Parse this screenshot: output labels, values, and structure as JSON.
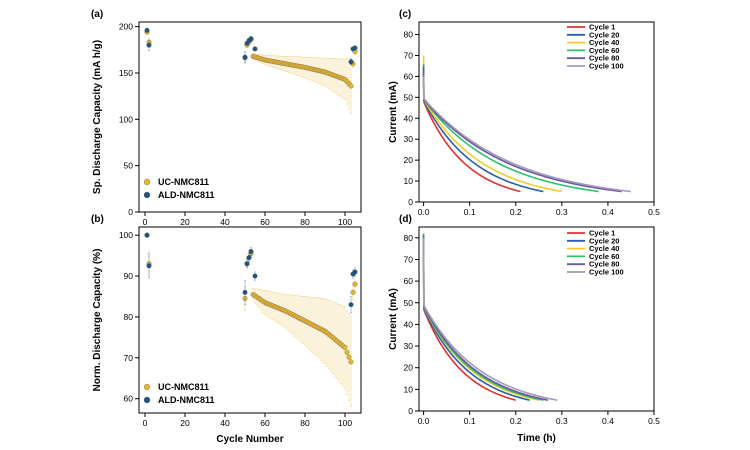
{
  "chart_data": [
    {
      "id": "a",
      "panel_label": "(a)",
      "type": "scatter",
      "ylabel": "Sp. Discharge Capacity (mA h/g)",
      "xlabel": "",
      "xlim": [
        -3,
        108
      ],
      "ylim": [
        0,
        205
      ],
      "xticks": [
        0,
        20,
        40,
        60,
        80,
        100
      ],
      "yticks": [
        0,
        50,
        100,
        150,
        200
      ],
      "legend_position": "bottom-left",
      "colors": {
        "UC-NMC811": "#E8B530",
        "ALD-NMC811": "#1F5585"
      },
      "series": [
        {
          "name": "UC-NMC811",
          "color": "#E8B530",
          "segments": [
            {
              "x": [
                1
              ],
              "y": [
                194
              ],
              "err": [
                2
              ]
            },
            {
              "x": [
                2,
                50
              ],
              "y": [
                183,
                166
              ],
              "err": [
                5,
                6
              ]
            },
            {
              "x": [
                51,
                52,
                53
              ],
              "y": [
                180,
                183,
                186
              ],
              "err": [
                2,
                2,
                2
              ]
            },
            {
              "x": [
                54,
                60,
                70,
                80,
                90,
                100,
                103
              ],
              "y": [
                168,
                164,
                160,
                156,
                151,
                143,
                136
              ],
              "err": [
                3,
                5,
                8,
                11,
                15,
                22,
                30
              ]
            },
            {
              "x": [
                104,
                105
              ],
              "y": [
                160,
                173
              ],
              "err": [
                4,
                4
              ]
            }
          ]
        },
        {
          "name": "ALD-NMC811",
          "color": "#1F5585",
          "segments": [
            {
              "x": [
                1
              ],
              "y": [
                196
              ],
              "err": [
                2
              ]
            },
            {
              "x": [
                2,
                50
              ],
              "y": [
                180,
                167
              ],
              "err": [
                6,
                6
              ]
            },
            {
              "x": [
                51,
                52,
                53
              ],
              "y": [
                182,
                185,
                187
              ],
              "err": [
                2,
                2,
                2
              ]
            },
            {
              "x": [
                55,
                103
              ],
              "y": [
                176,
                162
              ],
              "err": [
                2,
                3
              ]
            },
            {
              "x": [
                104,
                105
              ],
              "y": [
                176,
                177
              ],
              "err": [
                2,
                2
              ]
            }
          ]
        }
      ]
    },
    {
      "id": "b",
      "panel_label": "(b)",
      "type": "scatter",
      "ylabel": "Norm. Discharge Capacity (%)",
      "xlabel": "Cycle Number",
      "xlim": [
        -3,
        108
      ],
      "ylim": [
        56.5,
        102
      ],
      "xticks": [
        0,
        20,
        40,
        60,
        80,
        100
      ],
      "yticks": [
        60,
        70,
        80,
        90,
        100
      ],
      "legend_position": "bottom-left",
      "colors": {
        "UC-NMC811": "#E8B530",
        "ALD-NMC811": "#1F5585"
      },
      "series": [
        {
          "name": "UC-NMC811",
          "color": "#E8B530",
          "segments": [
            {
              "x": [
                1
              ],
              "y": [
                100
              ],
              "err": [
                0.5
              ]
            },
            {
              "x": [
                2,
                50
              ],
              "y": [
                93,
                84.5
              ],
              "err": [
                3,
                3
              ]
            },
            {
              "x": [
                51,
                52,
                53
              ],
              "y": [
                93,
                94.5,
                95.5
              ],
              "err": [
                1,
                1,
                1
              ]
            },
            {
              "x": [
                54,
                60,
                70,
                80,
                90,
                100,
                103
              ],
              "y": [
                85.5,
                83.5,
                81.5,
                79,
                76.5,
                72.5,
                69
              ],
              "err": [
                1.5,
                3,
                4,
                6,
                8,
                10,
                11
              ]
            },
            {
              "x": [
                104,
                105
              ],
              "y": [
                86,
                88
              ],
              "err": [
                2,
                2
              ]
            }
          ]
        },
        {
          "name": "ALD-NMC811",
          "color": "#1F5585",
          "segments": [
            {
              "x": [
                1
              ],
              "y": [
                100
              ],
              "err": [
                0.5
              ]
            },
            {
              "x": [
                2,
                50
              ],
              "y": [
                92.5,
                86
              ],
              "err": [
                3,
                3
              ]
            },
            {
              "x": [
                51,
                52,
                53
              ],
              "y": [
                93,
                94.5,
                96
              ],
              "err": [
                1,
                1,
                1
              ]
            },
            {
              "x": [
                55,
                103
              ],
              "y": [
                90,
                83
              ],
              "err": [
                1,
                2
              ]
            },
            {
              "x": [
                104,
                105
              ],
              "y": [
                90.5,
                91
              ],
              "err": [
                1,
                1
              ]
            }
          ]
        }
      ]
    },
    {
      "id": "c",
      "panel_label": "(c)",
      "type": "line",
      "ylabel": "Current (mA)",
      "xlabel": "",
      "xlim": [
        -0.01,
        0.5
      ],
      "ylim": [
        0,
        86
      ],
      "xticks": [
        0.0,
        0.1,
        0.2,
        0.3,
        0.4,
        0.5
      ],
      "yticks": [
        0,
        10,
        20,
        30,
        40,
        50,
        60,
        70,
        80
      ],
      "legend_position": "top-right",
      "series": [
        {
          "name": "Cycle 1",
          "color": "#E0312E",
          "spike": 62,
          "start": 48,
          "end": 5.0,
          "xend": 0.21
        },
        {
          "name": "Cycle 20",
          "color": "#2A5FA8",
          "spike": 64,
          "start": 48.5,
          "end": 5.0,
          "xend": 0.26
        },
        {
          "name": "Cycle 40",
          "color": "#F2CE27",
          "spike": 70,
          "start": 49,
          "end": 5.0,
          "xend": 0.3
        },
        {
          "name": "Cycle 60",
          "color": "#2EC16E",
          "spike": 66,
          "start": 49,
          "end": 5.0,
          "xend": 0.38
        },
        {
          "name": "Cycle 80",
          "color": "#6B57A6",
          "spike": 65,
          "start": 49,
          "end": 5.0,
          "xend": 0.43
        },
        {
          "name": "Cycle 100",
          "color": "#A79AB5",
          "spike": 60,
          "start": 49.5,
          "end": 5.0,
          "xend": 0.45
        }
      ]
    },
    {
      "id": "d",
      "panel_label": "(d)",
      "type": "line",
      "ylabel": "Current (mA)",
      "xlabel": "Time (h)",
      "xlim": [
        -0.01,
        0.5
      ],
      "ylim": [
        0,
        85
      ],
      "xticks": [
        0.0,
        0.1,
        0.2,
        0.3,
        0.4,
        0.5
      ],
      "yticks": [
        0,
        10,
        20,
        30,
        40,
        50,
        60,
        70,
        80
      ],
      "legend_position": "top-right",
      "series": [
        {
          "name": "Cycle 1",
          "color": "#E0312E",
          "spike": 80,
          "start": 47,
          "end": 5.0,
          "xend": 0.2
        },
        {
          "name": "Cycle 20",
          "color": "#2A5FA8",
          "spike": 81,
          "start": 47.5,
          "end": 5.0,
          "xend": 0.23
        },
        {
          "name": "Cycle 40",
          "color": "#F2CE27",
          "spike": 82,
          "start": 48,
          "end": 5.0,
          "xend": 0.25
        },
        {
          "name": "Cycle 60",
          "color": "#2EC16E",
          "spike": 82,
          "start": 48,
          "end": 5.0,
          "xend": 0.26
        },
        {
          "name": "Cycle 80",
          "color": "#6B57A6",
          "spike": 81,
          "start": 48.5,
          "end": 5.0,
          "xend": 0.27
        },
        {
          "name": "Cycle 100",
          "color": "#A79AB5",
          "spike": 80,
          "start": 49,
          "end": 5.0,
          "xend": 0.29
        }
      ]
    }
  ]
}
